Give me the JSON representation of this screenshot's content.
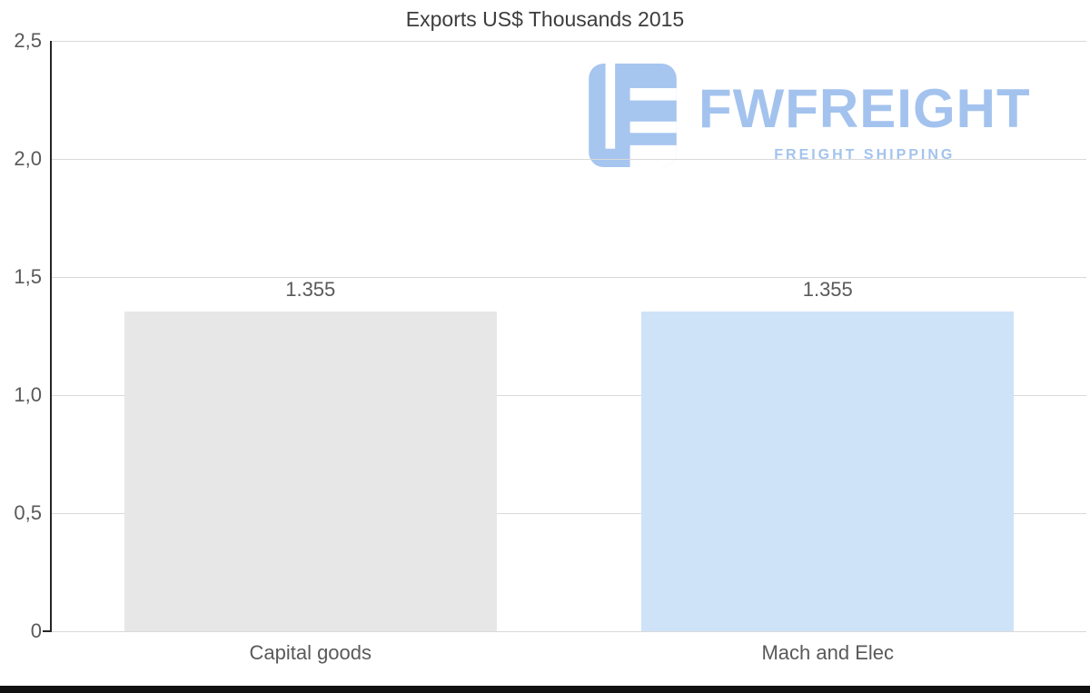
{
  "chart_data": {
    "type": "bar",
    "title": "Exports US$ Thousands 2015",
    "categories": [
      "Capital goods",
      "Mach and Elec"
    ],
    "values": [
      1.355,
      1.355
    ],
    "value_labels": [
      "1.355",
      "1.355"
    ],
    "bar_colors": [
      "#e7e7e7",
      "#cfe3f8"
    ],
    "ylim": [
      0,
      2.5
    ],
    "yticks": [
      {
        "value": 0,
        "label": "0"
      },
      {
        "value": 0.5,
        "label": "0,5"
      },
      {
        "value": 1.0,
        "label": "1,0"
      },
      {
        "value": 1.5,
        "label": "1,5"
      },
      {
        "value": 2.0,
        "label": "2,0"
      },
      {
        "value": 2.5,
        "label": "2,5"
      }
    ],
    "grid": true,
    "legend": false,
    "gridline_color": "#d9d9d9",
    "axis_color": "#262626",
    "label_color": "#595959"
  },
  "watermark": {
    "brand": "FWFREIGHT",
    "tagline": "FREIGHT SHIPPING",
    "color": "#a3c3ee"
  }
}
